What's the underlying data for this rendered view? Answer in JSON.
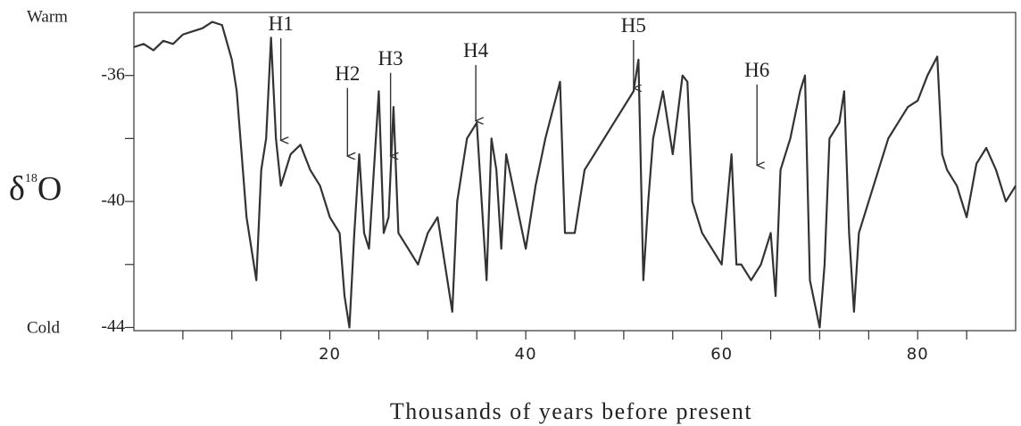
{
  "chart_data": {
    "type": "line",
    "x_label": "Thousands of years before present",
    "y_label": "δ18O",
    "top_label": "Warm",
    "bottom_label": "Cold",
    "xlim": [
      0,
      90
    ],
    "ylim": [
      -44.1,
      -34
    ],
    "xticks": [
      20,
      40,
      60,
      80
    ],
    "xminor_ticks": [
      5,
      10,
      15,
      25,
      30,
      35,
      45,
      50,
      55,
      65,
      70,
      75,
      85
    ],
    "yticks": [
      -36,
      -40,
      -44
    ],
    "yminor_ticks": [
      -38,
      -42
    ],
    "x": [
      0,
      1,
      2,
      3,
      4,
      5,
      6,
      7,
      8,
      9,
      10,
      10.5,
      11,
      11.5,
      12,
      12.5,
      13,
      13.5,
      14,
      14.5,
      15,
      16,
      17,
      18,
      19,
      20,
      21,
      21.5,
      22,
      22.5,
      23,
      23.5,
      24,
      25,
      25.5,
      26,
      26.5,
      27,
      28,
      29,
      30,
      31,
      32,
      32.5,
      33,
      33.5,
      34,
      35,
      35.5,
      36,
      36.5,
      37,
      37.5,
      38,
      39,
      40,
      41,
      42,
      43,
      43.5,
      44,
      45,
      46,
      47,
      48,
      49,
      50,
      51,
      51.5,
      52,
      52.5,
      53,
      54,
      55,
      56,
      56.5,
      57,
      58,
      59,
      60,
      61,
      61.5,
      62,
      63,
      64,
      65,
      65.5,
      66,
      67,
      68,
      68.5,
      69,
      70,
      70.5,
      71,
      72,
      72.5,
      73,
      73.5,
      74,
      75,
      76,
      77,
      78,
      79,
      80,
      81,
      82,
      82.5,
      83,
      84,
      85,
      86,
      87,
      88,
      89,
      90
    ],
    "series": [
      {
        "color": "#333333",
        "values": [
          -35.1,
          -35.0,
          -35.2,
          -34.9,
          -35.0,
          -34.7,
          -34.6,
          -34.5,
          -34.3,
          -34.4,
          -35.5,
          -36.5,
          -38.5,
          -40.5,
          -41.5,
          -42.5,
          -39,
          -38,
          -34.8,
          -38,
          -39.5,
          -38.5,
          -38.2,
          -39,
          -39.5,
          -40.5,
          -41,
          -43,
          -44,
          -41,
          -38.5,
          -41,
          -41.5,
          -36.5,
          -41,
          -40.5,
          -37,
          -41,
          -41.5,
          -42,
          -41,
          -40.5,
          -42.5,
          -43.5,
          -40,
          -39,
          -38,
          -37.5,
          -40,
          -42.5,
          -38,
          -39,
          -41.5,
          -38.5,
          -40,
          -41.5,
          -39.5,
          -38,
          -36.8,
          -36.2,
          -41,
          -41,
          -39,
          -38.5,
          -38,
          -37.5,
          -37,
          -36.5,
          -35.5,
          -42.5,
          -40,
          -38,
          -36.5,
          -38.5,
          -36,
          -36.2,
          -40,
          -41,
          -41.5,
          -42,
          -38.5,
          -42,
          -42,
          -42.5,
          -42,
          -41,
          -43,
          -39,
          -38,
          -36.5,
          -36,
          -42.5,
          -44,
          -42,
          -38,
          -37.5,
          -36.5,
          -41,
          -43.5,
          -41,
          -40,
          -39,
          -38,
          -37.5,
          -37,
          -36.8,
          -36,
          -35.4,
          -38.5,
          -39,
          -39.5,
          -40.5,
          -38.8,
          -38.3,
          -39,
          -40,
          -39.5
        ]
      }
    ],
    "annotations": [
      {
        "label": "H1",
        "xy": [
          15,
          -38.06
        ],
        "xytext": [
          15,
          -34.42
        ]
      },
      {
        "label": "H2",
        "xy": [
          21.8,
          -38.56
        ],
        "xytext": [
          21.8,
          -36
        ]
      },
      {
        "label": "H3",
        "xy": [
          26.2,
          -38.56
        ],
        "xytext": [
          26.2,
          -35.52
        ]
      },
      {
        "label": "H4",
        "xy": [
          34.9,
          -37.44
        ],
        "xytext": [
          34.9,
          -35.27
        ]
      },
      {
        "label": "H5",
        "xy": [
          51,
          -36.4
        ],
        "xytext": [
          51,
          -34.48
        ]
      },
      {
        "label": "H6",
        "xy": [
          63.6,
          -38.85
        ],
        "xytext": [
          63.6,
          -35.89
        ]
      }
    ]
  }
}
